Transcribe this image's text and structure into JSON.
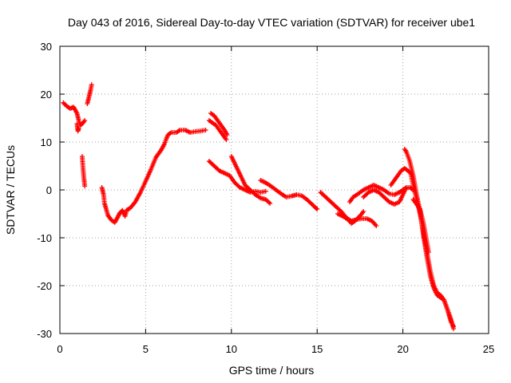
{
  "chart_data": {
    "type": "scatter",
    "title": "Day 043 of 2016, Sidereal Day-to-day VTEC variation (SDTVAR) for receiver ube1",
    "xlabel": "GPS time / hours",
    "ylabel": "SDTVAR / TECUs",
    "xlim": [
      0,
      25
    ],
    "ylim": [
      -30,
      30
    ],
    "xticks": [
      0,
      5,
      10,
      15,
      20,
      25
    ],
    "yticks": [
      -30,
      -20,
      -10,
      0,
      10,
      20,
      30
    ],
    "grid": true,
    "marker": "plus",
    "color": "#ff0000",
    "tracks": [
      [
        [
          0.2,
          18.2
        ],
        [
          0.4,
          17.5
        ],
        [
          0.6,
          17.0
        ],
        [
          0.8,
          17.3
        ],
        [
          1.0,
          16.0
        ],
        [
          1.1,
          14.5
        ],
        [
          1.2,
          13.5
        ],
        [
          1.35,
          14.0
        ],
        [
          1.45,
          14.5
        ]
      ],
      [
        [
          1.0,
          13.8
        ],
        [
          1.05,
          12.3
        ],
        [
          1.1,
          12.8
        ]
      ],
      [
        [
          1.3,
          7.0
        ],
        [
          1.35,
          4.5
        ],
        [
          1.4,
          2.5
        ],
        [
          1.45,
          0.8
        ]
      ],
      [
        [
          1.6,
          18.0
        ],
        [
          1.7,
          19.5
        ],
        [
          1.8,
          21.0
        ],
        [
          1.85,
          22.0
        ]
      ],
      [
        [
          2.45,
          0.5
        ],
        [
          2.55,
          -1.0
        ],
        [
          2.6,
          -2.8
        ],
        [
          2.7,
          -4.0
        ],
        [
          2.8,
          -5.3
        ],
        [
          3.0,
          -6.3
        ],
        [
          3.2,
          -6.8
        ],
        [
          3.4,
          -5.5
        ],
        [
          3.5,
          -4.8
        ],
        [
          3.65,
          -4.3
        ],
        [
          3.8,
          -5.5
        ],
        [
          3.9,
          -4.2
        ],
        [
          4.1,
          -3.8
        ],
        [
          4.4,
          -2.5
        ],
        [
          4.7,
          -0.5
        ],
        [
          5.0,
          1.8
        ],
        [
          5.3,
          4.2
        ],
        [
          5.6,
          6.8
        ],
        [
          5.9,
          8.3
        ],
        [
          6.1,
          9.6
        ],
        [
          6.2,
          10.6
        ],
        [
          6.3,
          11.5
        ],
        [
          6.5,
          12.0
        ],
        [
          6.8,
          12.0
        ],
        [
          7.0,
          12.5
        ],
        [
          7.3,
          12.5
        ],
        [
          7.6,
          12.0
        ],
        [
          7.9,
          12.2
        ],
        [
          8.2,
          12.3
        ],
        [
          8.5,
          12.5
        ]
      ],
      [
        [
          8.8,
          16.0
        ],
        [
          9.0,
          15.5
        ],
        [
          9.2,
          14.5
        ],
        [
          9.4,
          13.5
        ],
        [
          9.6,
          12.5
        ],
        [
          9.75,
          11.5
        ]
      ],
      [
        [
          8.7,
          14.5
        ],
        [
          8.9,
          14.0
        ],
        [
          9.1,
          13.5
        ],
        [
          9.3,
          12.5
        ],
        [
          9.5,
          11.5
        ],
        [
          9.7,
          10.5
        ]
      ],
      [
        [
          8.7,
          6.0
        ],
        [
          9.0,
          5.0
        ],
        [
          9.3,
          4.0
        ],
        [
          9.6,
          3.5
        ],
        [
          9.9,
          3.0
        ],
        [
          10.2,
          1.5
        ],
        [
          10.5,
          0.5
        ],
        [
          10.8,
          0.0
        ],
        [
          11.1,
          -0.5
        ],
        [
          11.4,
          -0.3
        ],
        [
          11.7,
          -0.5
        ],
        [
          12.0,
          -0.3
        ]
      ],
      [
        [
          10.0,
          7.0
        ],
        [
          10.2,
          5.5
        ],
        [
          10.4,
          4.0
        ],
        [
          10.6,
          2.5
        ],
        [
          10.8,
          1.0
        ],
        [
          11.1,
          0.0
        ],
        [
          11.4,
          -1.0
        ],
        [
          11.7,
          -1.7
        ],
        [
          12.0,
          -2.0
        ],
        [
          12.25,
          -2.8
        ]
      ],
      [
        [
          11.7,
          2.0
        ],
        [
          12.0,
          1.5
        ],
        [
          12.3,
          0.8
        ],
        [
          12.6,
          0.0
        ],
        [
          12.9,
          -0.8
        ],
        [
          13.2,
          -1.5
        ],
        [
          13.5,
          -1.3
        ],
        [
          13.8,
          -1.0
        ],
        [
          14.1,
          -1.2
        ],
        [
          14.4,
          -2.0
        ],
        [
          14.7,
          -3.0
        ],
        [
          14.9,
          -3.7
        ],
        [
          15.0,
          -4.0
        ]
      ],
      [
        [
          15.2,
          -0.5
        ],
        [
          15.5,
          -1.5
        ],
        [
          15.8,
          -2.5
        ],
        [
          16.1,
          -3.5
        ],
        [
          16.4,
          -4.5
        ],
        [
          16.7,
          -5.8
        ],
        [
          17.0,
          -6.5
        ],
        [
          17.3,
          -6.2
        ],
        [
          17.6,
          -6.0
        ],
        [
          17.9,
          -6.0
        ],
        [
          18.2,
          -6.5
        ],
        [
          18.45,
          -7.5
        ]
      ],
      [
        [
          16.2,
          -5.0
        ],
        [
          16.5,
          -5.5
        ],
        [
          16.8,
          -6.2
        ],
        [
          17.0,
          -7.0
        ],
        [
          17.2,
          -6.5
        ],
        [
          17.4,
          -5.8
        ],
        [
          17.6,
          -5.0
        ],
        [
          17.7,
          -4.5
        ]
      ],
      [
        [
          16.9,
          -2.5
        ],
        [
          17.1,
          -1.5
        ],
        [
          17.4,
          -0.8
        ],
        [
          17.7,
          0.0
        ],
        [
          18.0,
          0.5
        ],
        [
          18.3,
          1.0
        ],
        [
          18.6,
          0.5
        ],
        [
          18.9,
          0.0
        ],
        [
          19.2,
          -0.8
        ],
        [
          19.5,
          -1.0
        ],
        [
          19.8,
          -0.5
        ],
        [
          20.0,
          0.0
        ],
        [
          20.2,
          0.5
        ]
      ],
      [
        [
          17.7,
          -1.5
        ],
        [
          18.0,
          -0.5
        ],
        [
          18.3,
          0.0
        ],
        [
          18.6,
          -0.5
        ],
        [
          18.9,
          -1.5
        ],
        [
          19.2,
          -2.5
        ],
        [
          19.5,
          -3.0
        ],
        [
          19.8,
          -2.5
        ],
        [
          20.0,
          -1.0
        ],
        [
          20.2,
          0.5
        ],
        [
          20.4,
          0.5
        ],
        [
          20.6,
          0.0
        ]
      ],
      [
        [
          19.3,
          1.0
        ],
        [
          19.5,
          2.0
        ],
        [
          19.7,
          3.0
        ],
        [
          19.9,
          4.0
        ],
        [
          20.1,
          4.5
        ],
        [
          20.3,
          4.0
        ],
        [
          20.45,
          3.5
        ],
        [
          20.6,
          1.0
        ],
        [
          20.8,
          -2.0
        ],
        [
          21.0,
          -5.0
        ],
        [
          21.2,
          -9.0
        ],
        [
          21.4,
          -13.0
        ],
        [
          21.6,
          -17.0
        ],
        [
          21.8,
          -20.0
        ],
        [
          22.0,
          -21.5
        ],
        [
          22.2,
          -22.0
        ],
        [
          22.4,
          -23.0
        ],
        [
          22.6,
          -25.0
        ],
        [
          22.8,
          -27.0
        ],
        [
          22.95,
          -29.0
        ]
      ],
      [
        [
          20.1,
          8.5
        ],
        [
          20.2,
          8.0
        ],
        [
          20.4,
          6.0
        ],
        [
          20.6,
          3.0
        ],
        [
          20.8,
          -1.0
        ],
        [
          21.0,
          -4.5
        ],
        [
          21.2,
          -9.5
        ],
        [
          21.4,
          -14.0
        ],
        [
          21.6,
          -18.0
        ],
        [
          21.8,
          -20.5
        ],
        [
          22.0,
          -22.0
        ],
        [
          22.2,
          -22.5
        ],
        [
          22.4,
          -23.0
        ],
        [
          22.6,
          -25.0
        ],
        [
          22.8,
          -27.5
        ],
        [
          22.95,
          -28.5
        ]
      ],
      [
        [
          20.6,
          -2.0
        ],
        [
          20.8,
          -3.0
        ],
        [
          21.0,
          -4.0
        ],
        [
          21.2,
          -7.0
        ],
        [
          21.4,
          -11.0
        ],
        [
          21.5,
          -13.0
        ]
      ]
    ]
  }
}
